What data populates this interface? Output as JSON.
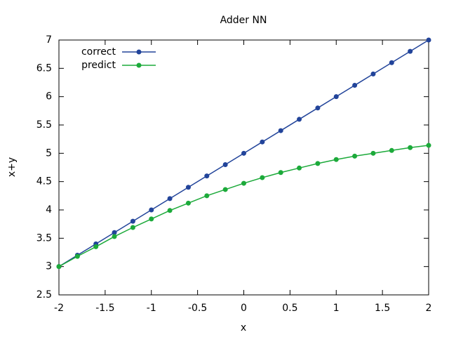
{
  "chart_data": {
    "type": "line",
    "title": "Adder NN",
    "x_label": "x",
    "y_label": "x+y",
    "x": [
      -2,
      -1.8,
      -1.6,
      -1.4,
      -1.2,
      -1,
      -0.8,
      -0.6,
      -0.4,
      -0.2,
      0,
      0.2,
      0.4,
      0.6,
      0.8,
      1,
      1.2,
      1.4,
      1.6,
      1.8,
      2
    ],
    "series": [
      {
        "name": "correct",
        "color": "#22449a",
        "values": [
          3,
          3.2,
          3.4,
          3.6,
          3.8,
          4,
          4.2,
          4.4,
          4.6,
          4.8,
          5,
          5.2,
          5.4,
          5.6,
          5.8,
          6,
          6.2,
          6.4,
          6.6,
          6.8,
          7
        ]
      },
      {
        "name": "predict",
        "color": "#1caa3a",
        "values": [
          3.0,
          3.18,
          3.35,
          3.53,
          3.69,
          3.84,
          3.99,
          4.12,
          4.25,
          4.36,
          4.47,
          4.57,
          4.66,
          4.74,
          4.82,
          4.89,
          4.95,
          5.0,
          5.05,
          5.1,
          5.14
        ]
      }
    ],
    "xlim": [
      -2,
      2
    ],
    "xticks": [
      -2,
      -1.5,
      -1,
      -0.5,
      0,
      0.5,
      1,
      1.5,
      2
    ],
    "ylim": [
      2.5,
      7
    ],
    "yticks": [
      2.5,
      3,
      3.5,
      4,
      4.5,
      5,
      5.5,
      6,
      6.5,
      7
    ],
    "legend": "top-left",
    "grid": false
  }
}
